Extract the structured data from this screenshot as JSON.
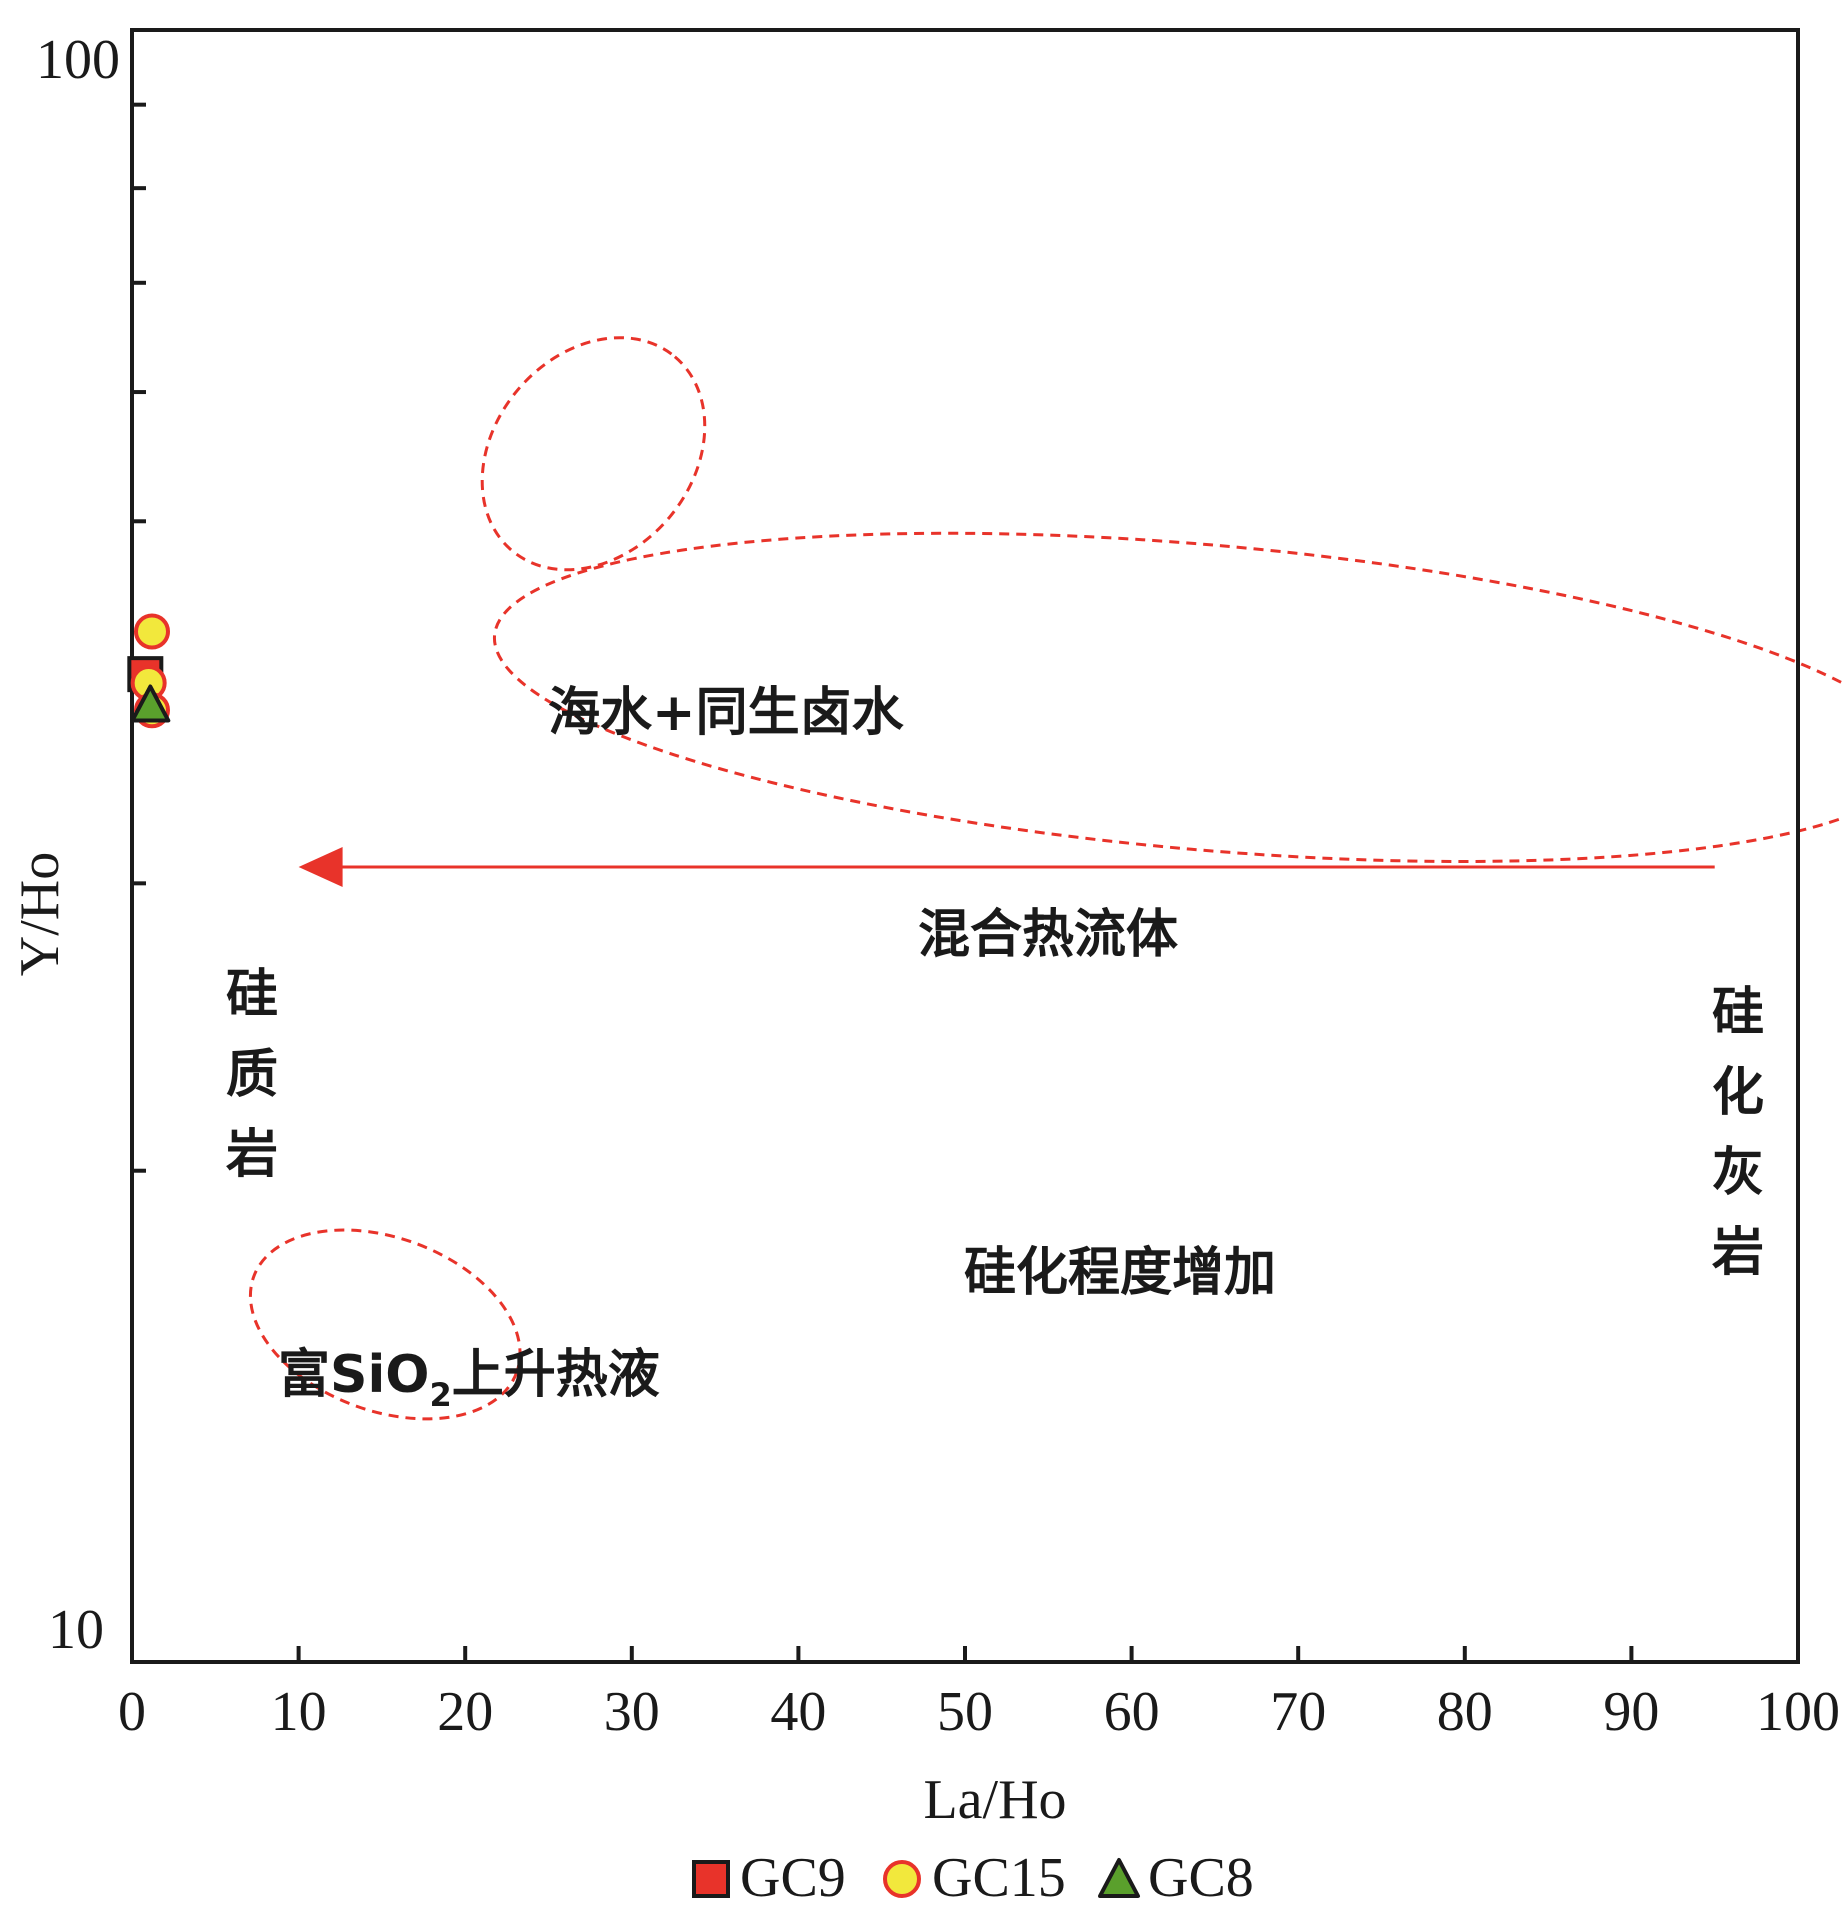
{
  "chart_data": {
    "type": "scatter",
    "xlabel": "La/Ho",
    "ylabel": "Y/Ho",
    "xlim": [
      0,
      100
    ],
    "ylim": [
      10,
      100
    ],
    "yscale": "log",
    "xticks": [
      0,
      10,
      20,
      30,
      40,
      50,
      60,
      70,
      80,
      90,
      100
    ],
    "xtick_labels": [
      "0",
      "10",
      "20",
      "30",
      "40",
      "50",
      "60",
      "70",
      "80",
      "90",
      "100"
    ],
    "ytick_labels": [
      "10",
      "100"
    ],
    "grid": false,
    "legend_position": "bottom",
    "colors": {
      "gc9": "#e8332a",
      "gc15_fill": "#f2e83c",
      "gc15_edge": "#e8332a",
      "gc8": "#5aa02c",
      "regions": "#e8332a",
      "arrow": "#e8332a"
    },
    "series": [
      {
        "name": "GC9",
        "marker": "square",
        "points": [
          {
            "x": 0.8,
            "y": 40.3
          }
        ]
      },
      {
        "name": "GC15",
        "marker": "circle",
        "points": [
          {
            "x": 1.2,
            "y": 42.8
          },
          {
            "x": 1.0,
            "y": 39.8
          },
          {
            "x": 1.2,
            "y": 38.3
          }
        ]
      },
      {
        "name": "GC8",
        "marker": "triangle",
        "points": [
          {
            "x": 1.1,
            "y": 38.5
          }
        ]
      }
    ],
    "regions": [
      {
        "label": "海水+同生卤水",
        "cx": 27.7,
        "cy": 55,
        "rx": 7.6,
        "ry": 1.15,
        "angle": 50
      },
      {
        "label": "混合热流体",
        "cx": 64.4,
        "cy": 39,
        "rx": 42.8,
        "ry": 1.24,
        "angle": -5
      },
      {
        "label": "富SiO₂上升热液",
        "cx": 15.2,
        "cy": 16.1,
        "rx": 8.4,
        "ry": 1.13,
        "angle": -20
      }
    ],
    "arrow": {
      "from_x": 95,
      "to_x": 10,
      "y": 30.7,
      "label": "硅化程度增加"
    },
    "end_labels": {
      "left": "硅质岩",
      "right": "硅化灰岩"
    }
  },
  "labels": {
    "seawater": "海水+同生卤水",
    "mixed": "混合热流体",
    "hydro_prefix": "富SiO",
    "hydro_sub": "2",
    "hydro_suffix": "上升热液",
    "increase": "硅化程度增加",
    "siliceous_rock": [
      "硅",
      "质",
      "岩"
    ],
    "silicified_limestone": [
      "硅",
      "化",
      "灰",
      "岩"
    ]
  }
}
